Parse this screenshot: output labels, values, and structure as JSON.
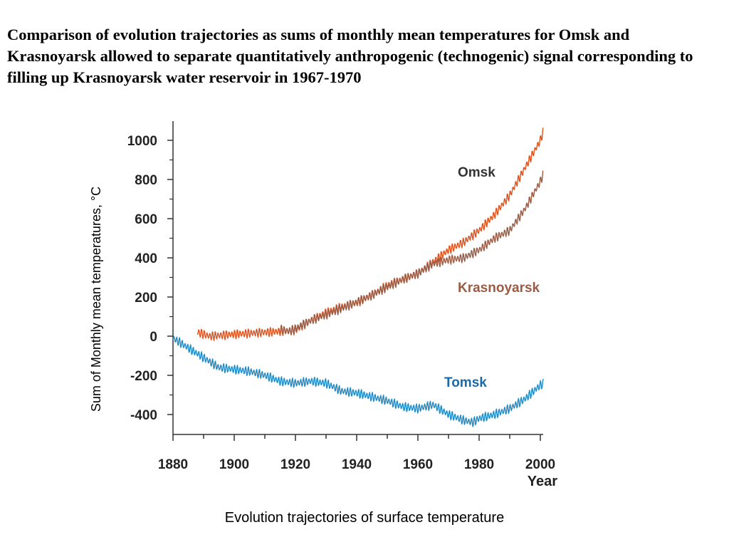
{
  "heading": "Comparison of evolution trajectories as sums of monthly mean temperatures for Omsk and Krasnoyarsk allowed to separate quantitatively anthropogenic (technogenic) signal corresponding to filling up Krasnoyarsk water reservoir in 1967-1970",
  "caption": "Evolution trajectories of surface temperature",
  "chart_data": {
    "type": "line",
    "title": "",
    "xlabel": "Year",
    "ylabel": "Sum of Monthly mean temperatures, °C",
    "xlim": [
      1880,
      2001
    ],
    "ylim": [
      -500,
      1100
    ],
    "x_ticks": [
      1880,
      1900,
      1920,
      1940,
      1960,
      1980,
      2000
    ],
    "x_tick_labels": [
      "1880",
      "1900",
      "1920",
      "1940",
      "1960",
      "1980",
      "2000"
    ],
    "y_ticks": [
      -400,
      -200,
      0,
      200,
      400,
      600,
      800,
      1000
    ],
    "y_tick_labels": [
      "-400",
      "-200",
      "0",
      "200",
      "400",
      "600",
      "800",
      "1000"
    ],
    "legend": "inline labels",
    "grid": false,
    "series": [
      {
        "name": "Omsk",
        "color": "#e0531c",
        "oscillation": 25,
        "x": [
          1888,
          1892,
          1896,
          1900,
          1905,
          1910,
          1915,
          1920,
          1925,
          1930,
          1935,
          1940,
          1945,
          1950,
          1955,
          1960,
          1965,
          1970,
          1975,
          1980,
          1985,
          1990,
          1995,
          2000,
          2001
        ],
        "y": [
          20,
          0,
          5,
          10,
          15,
          20,
          25,
          30,
          80,
          120,
          150,
          170,
          210,
          260,
          290,
          320,
          380,
          440,
          480,
          540,
          620,
          720,
          860,
          1000,
          1050
        ]
      },
      {
        "name": "Krasnoyarsk",
        "color": "#9a5c45",
        "oscillation": 25,
        "x": [
          1915,
          1918,
          1920,
          1925,
          1930,
          1935,
          1940,
          1945,
          1950,
          1955,
          1960,
          1965,
          1970,
          1975,
          1980,
          1985,
          1990,
          1995,
          2000,
          2001
        ],
        "y": [
          35,
          25,
          40,
          80,
          110,
          140,
          175,
          210,
          250,
          290,
          320,
          370,
          390,
          400,
          440,
          500,
          540,
          650,
          790,
          830
        ]
      },
      {
        "name": "Tomsk",
        "color": "#1e8cc8",
        "oscillation": 25,
        "x": [
          1880,
          1885,
          1890,
          1895,
          1900,
          1905,
          1910,
          1915,
          1920,
          1925,
          1930,
          1935,
          1940,
          1945,
          1950,
          1955,
          1960,
          1965,
          1970,
          1975,
          1978,
          1980,
          1985,
          1990,
          1995,
          2000,
          2001
        ],
        "y": [
          -10,
          -60,
          -110,
          -160,
          -170,
          -180,
          -200,
          -230,
          -240,
          -230,
          -240,
          -280,
          -290,
          -310,
          -330,
          -360,
          -370,
          -350,
          -400,
          -430,
          -440,
          -420,
          -400,
          -370,
          -320,
          -250,
          -240
        ]
      }
    ],
    "labels": {
      "omsk": "Omsk",
      "krasnoyarsk": "Krasnoyarsk",
      "tomsk": "Tomsk"
    }
  }
}
